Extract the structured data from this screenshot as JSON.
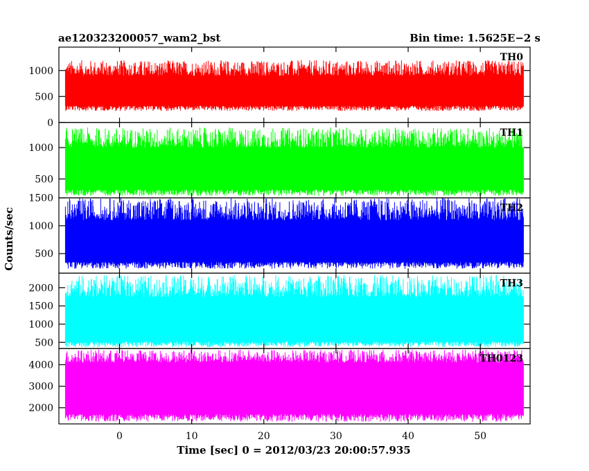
{
  "header": {
    "left_title": "ae120323200057_wam2_bst",
    "right_title": "Bin time: 1.5625E−2 s"
  },
  "chart_data": {
    "type": "line",
    "xlabel": "Time [sec] 0 = 2012/03/23 20:00:57.935",
    "ylabel": "Counts/sec",
    "xlim": [
      -8.4,
      56.9
    ],
    "x_ticks": [
      0,
      10,
      20,
      30,
      40,
      50
    ],
    "x_tick_labels": [
      "0",
      "10",
      "20",
      "30",
      "40",
      "50"
    ],
    "x_data_range": [
      -7.5,
      56.0
    ],
    "grid": false,
    "legend": "none",
    "panels": [
      {
        "name": "TH0",
        "color": "#ff0000",
        "ylim": [
          0,
          1450
        ],
        "yticks": [
          0,
          500,
          1000
        ],
        "ytick_labels": [
          "0",
          "500",
          "1000"
        ],
        "mean": 600,
        "envelope_low": [
          220,
          320
        ],
        "envelope_high": [
          900,
          1200
        ]
      },
      {
        "name": "TH1",
        "color": "#00ff00",
        "ylim": [
          200,
          1400
        ],
        "yticks": [
          500,
          1000
        ],
        "ytick_labels": [
          "500",
          "1000"
        ],
        "mean": 670,
        "envelope_low": [
          230,
          330
        ],
        "envelope_high": [
          1000,
          1320
        ]
      },
      {
        "name": "TH2",
        "color": "#0000ff",
        "ylim": [
          150,
          1500
        ],
        "yticks": [
          500,
          1000,
          1500
        ],
        "ytick_labels": [
          "500",
          "1000",
          "1500"
        ],
        "mean": 730,
        "envelope_low": [
          230,
          350
        ],
        "envelope_high": [
          1100,
          1500
        ]
      },
      {
        "name": "TH3",
        "color": "#00ffff",
        "ylim": [
          330,
          2400
        ],
        "yticks": [
          500,
          1000,
          1500,
          2000
        ],
        "ytick_labels": [
          "500",
          "1000",
          "1500",
          "2000"
        ],
        "mean": 1050,
        "envelope_low": [
          370,
          520
        ],
        "envelope_high": [
          1750,
          2350
        ]
      },
      {
        "name": "TH0123",
        "color": "#ff00ff",
        "ylim": [
          1250,
          4750
        ],
        "yticks": [
          2000,
          3000,
          4000
        ],
        "ytick_labels": [
          "2000",
          "3000",
          "4000"
        ],
        "mean": 2900,
        "envelope_low": [
          1350,
          1700
        ],
        "envelope_high": [
          4100,
          4700
        ]
      }
    ]
  }
}
